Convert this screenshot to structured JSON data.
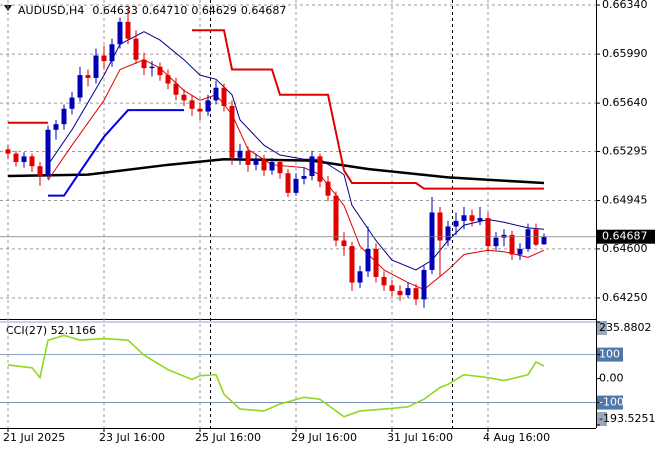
{
  "chart_data": {
    "type": "candlestick",
    "title": "AUDUSD,H4",
    "header_values": [
      "0.64633",
      "0.64710",
      "0.64629",
      "0.64687"
    ],
    "up_color": "#0000b4",
    "down_color": "#e00000",
    "grid": true,
    "xlim": [
      -1,
      73.5
    ],
    "ylim": [
      0.64107,
      0.66376
    ],
    "yticks": [
      {
        "value": 0.6634,
        "label": "0.66340"
      },
      {
        "value": 0.6599,
        "label": "0.65990"
      },
      {
        "value": 0.6564,
        "label": "0.65640"
      },
      0.65295,
      0.64945,
      {
        "value": 0.646,
        "label": "0.64600"
      },
      {
        "value": 0.6425,
        "label": "0.64250"
      }
    ],
    "xticks": [
      {
        "value": 0,
        "label": "21 Jul 2025"
      },
      {
        "value": 12,
        "label": "23 Jul 16:00"
      },
      {
        "value": 24,
        "label": "25 Jul 16:00"
      },
      {
        "value": 36,
        "label": "29 Jul 16:00"
      },
      {
        "value": 48,
        "label": "31 Jul 16:00"
      },
      {
        "value": 60,
        "label": "4 Aug 16:00"
      }
    ],
    "ohlc": [
      [
        0.6531,
        0.6534,
        0.6524,
        0.6528
      ],
      [
        0.6528,
        0.653,
        0.6519,
        0.6522
      ],
      [
        0.6522,
        0.6529,
        0.6518,
        0.6526
      ],
      [
        0.6526,
        0.6528,
        0.6515,
        0.6519
      ],
      [
        0.6519,
        0.6522,
        0.6505,
        0.6512
      ],
      [
        0.6512,
        0.6548,
        0.651,
        0.6545
      ],
      [
        0.6545,
        0.6552,
        0.6538,
        0.6549
      ],
      [
        0.6549,
        0.6563,
        0.6545,
        0.656
      ],
      [
        0.656,
        0.6572,
        0.6556,
        0.6568
      ],
      [
        0.6568,
        0.659,
        0.6565,
        0.6584
      ],
      [
        0.6584,
        0.6588,
        0.6576,
        0.6582
      ],
      [
        0.6582,
        0.6603,
        0.6578,
        0.6598
      ],
      [
        0.6598,
        0.6605,
        0.6588,
        0.6594
      ],
      [
        0.6594,
        0.661,
        0.659,
        0.6606
      ],
      [
        0.6606,
        0.6625,
        0.6603,
        0.6622
      ],
      [
        0.6622,
        0.6632,
        0.6606,
        0.661
      ],
      [
        0.661,
        0.6616,
        0.6592,
        0.6595
      ],
      [
        0.6595,
        0.66,
        0.6584,
        0.6589
      ],
      [
        0.6589,
        0.6594,
        0.6583,
        0.659
      ],
      [
        0.659,
        0.6593,
        0.658,
        0.6584
      ],
      [
        0.6584,
        0.6588,
        0.6574,
        0.6578
      ],
      [
        0.6578,
        0.6582,
        0.6566,
        0.657
      ],
      [
        0.657,
        0.6574,
        0.6562,
        0.6566
      ],
      [
        0.6566,
        0.657,
        0.6555,
        0.656
      ],
      [
        0.656,
        0.6564,
        0.6552,
        0.6558
      ],
      [
        0.6558,
        0.657,
        0.6555,
        0.6566
      ],
      [
        0.6566,
        0.658,
        0.6563,
        0.6575
      ],
      [
        0.6575,
        0.6578,
        0.6558,
        0.6562
      ],
      [
        0.6562,
        0.6566,
        0.652,
        0.6525
      ],
      [
        0.6525,
        0.6535,
        0.652,
        0.653
      ],
      [
        0.653,
        0.6533,
        0.6515,
        0.652
      ],
      [
        0.652,
        0.6528,
        0.6516,
        0.6524
      ],
      [
        0.6524,
        0.6527,
        0.6512,
        0.6516
      ],
      [
        0.6516,
        0.6525,
        0.6513,
        0.6522
      ],
      [
        0.6522,
        0.6524,
        0.651,
        0.6514
      ],
      [
        0.6514,
        0.6517,
        0.6497,
        0.65
      ],
      [
        0.65,
        0.6514,
        0.6498,
        0.651
      ],
      [
        0.651,
        0.6518,
        0.6506,
        0.6512
      ],
      [
        0.6512,
        0.653,
        0.6509,
        0.6526
      ],
      [
        0.6526,
        0.6528,
        0.6504,
        0.6508
      ],
      [
        0.6508,
        0.6512,
        0.6494,
        0.6498
      ],
      [
        0.6498,
        0.6501,
        0.6462,
        0.6466
      ],
      [
        0.6466,
        0.6472,
        0.6455,
        0.6462
      ],
      [
        0.6462,
        0.6465,
        0.643,
        0.6436
      ],
      [
        0.6436,
        0.6448,
        0.6432,
        0.6444
      ],
      [
        0.6444,
        0.6476,
        0.644,
        0.646
      ],
      [
        0.646,
        0.6464,
        0.6436,
        0.644
      ],
      [
        0.644,
        0.6444,
        0.643,
        0.6434
      ],
      [
        0.6434,
        0.6438,
        0.6426,
        0.643
      ],
      [
        0.643,
        0.6434,
        0.6423,
        0.6427
      ],
      [
        0.6427,
        0.6436,
        0.6425,
        0.6432
      ],
      [
        0.6432,
        0.6435,
        0.642,
        0.6424
      ],
      [
        0.6424,
        0.6448,
        0.6418,
        0.6445
      ],
      [
        0.6445,
        0.6497,
        0.6442,
        0.6486
      ],
      [
        0.6486,
        0.649,
        0.644,
        0.6466
      ],
      [
        0.6466,
        0.648,
        0.6462,
        0.6476
      ],
      [
        0.6476,
        0.6486,
        0.647,
        0.648
      ],
      [
        0.648,
        0.649,
        0.6474,
        0.6484
      ],
      [
        0.6484,
        0.6488,
        0.6476,
        0.648
      ],
      [
        0.648,
        0.649,
        0.6477,
        0.6482
      ],
      [
        0.6482,
        0.6486,
        0.6458,
        0.6462
      ],
      [
        0.6462,
        0.6472,
        0.6459,
        0.6468
      ],
      [
        0.6468,
        0.6474,
        0.6462,
        0.647
      ],
      [
        0.647,
        0.6473,
        0.6452,
        0.6456
      ],
      [
        0.6456,
        0.6464,
        0.6452,
        0.646
      ],
      [
        0.646,
        0.6478,
        0.6458,
        0.6474
      ],
      [
        0.6474,
        0.6478,
        0.6462,
        0.6463
      ],
      [
        0.64633,
        0.6471,
        0.64629,
        0.64687
      ]
    ],
    "overlays": [
      {
        "color": "#000000",
        "width": 2.5,
        "x": [
          0,
          10,
          20,
          27,
          38,
          45,
          55,
          67
        ],
        "values": [
          0.6512,
          0.6513,
          0.652,
          0.6524,
          0.6523,
          0.6517,
          0.6511,
          0.6507
        ]
      },
      {
        "color": "#e00000",
        "width": 2,
        "x": [
          0,
          5,
          6,
          23,
          27,
          28,
          33,
          34,
          40,
          42,
          43,
          51,
          52,
          67
        ],
        "values": [
          0.655,
          0.655,
          null,
          0.6616,
          0.6616,
          0.6588,
          0.6588,
          0.657,
          0.657,
          0.6516,
          0.6507,
          0.6507,
          0.6503,
          0.6503
        ]
      },
      {
        "color": "#0000e0",
        "width": 2,
        "x": [
          5,
          7,
          9,
          12,
          15,
          22
        ],
        "values": [
          0.6498,
          0.6498,
          0.6515,
          0.654,
          0.6559,
          0.6559
        ]
      },
      {
        "color": "#00008b",
        "width": 1,
        "x": [
          5,
          8,
          12,
          14,
          17,
          19,
          22,
          24,
          26,
          28,
          29,
          32,
          34,
          37,
          39,
          42,
          43,
          46,
          48,
          51,
          53,
          55,
          57,
          60,
          62,
          65,
          67
        ],
        "values": [
          0.652,
          0.6545,
          0.6584,
          0.6606,
          0.6615,
          0.6609,
          0.6595,
          0.6584,
          0.6581,
          0.657,
          0.6552,
          0.6534,
          0.6527,
          0.6524,
          0.6524,
          0.6513,
          0.6491,
          0.6466,
          0.6452,
          0.6445,
          0.6452,
          0.6466,
          0.6477,
          0.6481,
          0.6479,
          0.6475,
          0.6474
        ]
      },
      {
        "color": "#e00000",
        "width": 1,
        "x": [
          5,
          8,
          12,
          14,
          17,
          19,
          22,
          24,
          26,
          28,
          30,
          33,
          37,
          39,
          42,
          44,
          47,
          50,
          52,
          55,
          57,
          60,
          62,
          65,
          67
        ],
        "values": [
          0.6509,
          0.6534,
          0.6566,
          0.6588,
          0.6595,
          0.6589,
          0.6573,
          0.6566,
          0.657,
          0.6556,
          0.6531,
          0.652,
          0.6518,
          0.6513,
          0.6491,
          0.6462,
          0.6445,
          0.6436,
          0.6431,
          0.6445,
          0.6456,
          0.6459,
          0.6458,
          0.6454,
          0.6459
        ]
      }
    ],
    "indicator": {
      "type": "line",
      "title": "CCI(27) 52.1166",
      "color": "#8fd81e",
      "ylim": [
        -193.5251,
        235.8802
      ],
      "yticks": [
        235.8802,
        100,
        {
          "value": 0,
          "label": "0.00"
        },
        -100,
        -193.5251
      ],
      "levels": [
        235.8802,
        100,
        -100
      ],
      "x": [
        0,
        3,
        4,
        5,
        7,
        9,
        12,
        15,
        17,
        20,
        23,
        24,
        26,
        27,
        29,
        32,
        34,
        37,
        39,
        42,
        44,
        47,
        50,
        52,
        54,
        55,
        57,
        60,
        62,
        65,
        66,
        67
      ],
      "values": [
        57,
        45,
        4,
        160,
        180,
        160,
        167,
        160,
        98,
        37,
        -4,
        12,
        16,
        -65,
        -127,
        -135,
        -106,
        -78,
        -86,
        -159,
        -135,
        -127,
        -118,
        -86,
        -37,
        -24,
        16,
        4,
        -8,
        16,
        69,
        52.1166
      ]
    }
  }
}
